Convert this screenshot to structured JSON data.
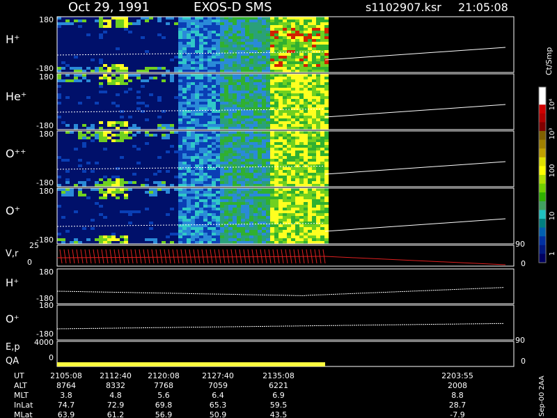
{
  "header": {
    "date": "Oct 29, 1991",
    "instrument": "EXOS-D SMS",
    "file": "s1102907.ksr",
    "time": "21:05:08"
  },
  "colorbar": {
    "label": "Ct/Smp",
    "ticks": [
      "10⁴",
      "10³",
      "100",
      "10",
      "1"
    ],
    "colors": [
      "#ffffff",
      "#ffffff",
      "#d00000",
      "#b00000",
      "#800000",
      "#806000",
      "#a08000",
      "#c0a000",
      "#e0e000",
      "#ffff00",
      "#b0e000",
      "#70d000",
      "#30b000",
      "#40a060",
      "#20c0c0",
      "#008080",
      "#0060b0",
      "#0030a0",
      "#001880",
      "#000060"
    ]
  },
  "annotations": {
    "orbit_end_note": "Sep-00 2AA"
  },
  "chart_data": [
    {
      "type": "heatmap",
      "panels": [
        {
          "label": "H⁺",
          "ylim": [
            "180",
            "-180"
          ]
        },
        {
          "label": "He⁺",
          "ylim": [
            "180",
            "-180"
          ]
        },
        {
          "label": "O⁺⁺",
          "ylim": [
            "180",
            "-180"
          ]
        },
        {
          "label": "O⁺",
          "ylim": [
            "180",
            "-180"
          ]
        }
      ],
      "x_ticks": [
        "2105:08",
        "2112:40",
        "2120:08",
        "2127:40",
        "2135:08",
        "2203:55"
      ]
    },
    {
      "type": "line",
      "panel_label": "V,r",
      "ylim_left": [
        "25",
        "0"
      ],
      "ylim_right": [
        "90",
        "0"
      ]
    },
    {
      "type": "line",
      "panel_label": "H⁺",
      "ylim": [
        "180",
        "-180"
      ]
    },
    {
      "type": "line",
      "panel_label": "O⁺",
      "ylim": [
        "180",
        "-180"
      ]
    },
    {
      "type": "line",
      "panel_label": "E,p",
      "panel_label2": "QA",
      "ylim_left": [
        "4000",
        "0"
      ],
      "ylim_right": [
        "90",
        "0"
      ]
    }
  ],
  "ephemeris": {
    "rows": [
      {
        "label": "UT",
        "values": [
          "2105:08",
          "2112:40",
          "2120:08",
          "2127:40",
          "2135:08",
          "2203:55"
        ]
      },
      {
        "label": "ALT",
        "values": [
          "8764",
          "8332",
          "7768",
          "7059",
          "6221",
          "2008"
        ]
      },
      {
        "label": "MLT",
        "values": [
          "3.8",
          "4.8",
          "5.6",
          "6.4",
          "6.9",
          "8.8"
        ]
      },
      {
        "label": "InLat",
        "values": [
          "74.7",
          "72.9",
          "69.8",
          "65.3",
          "59.5",
          "28.7"
        ]
      },
      {
        "label": "MLat",
        "values": [
          "63.9",
          "61.2",
          "56.9",
          "50.9",
          "43.5",
          "-7.9"
        ]
      }
    ]
  }
}
